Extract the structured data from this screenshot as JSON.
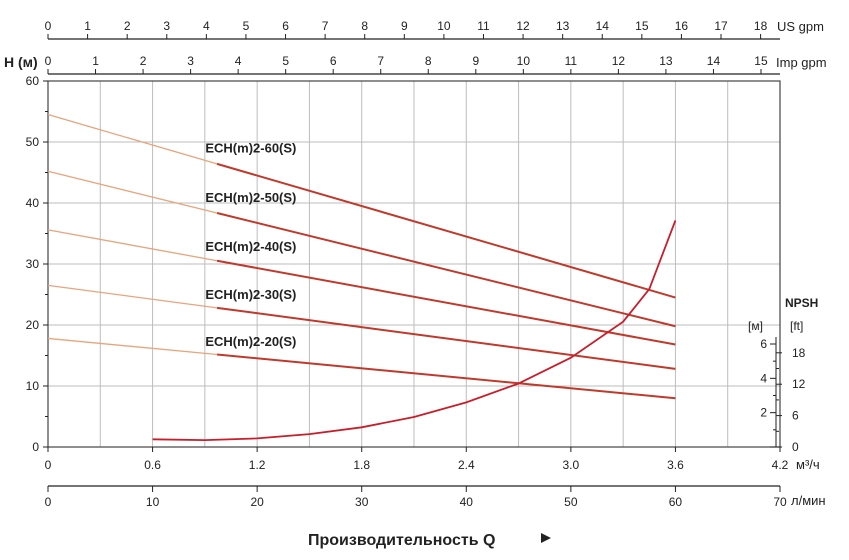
{
  "chart_data": {
    "type": "line",
    "ylabel": "H (м)",
    "ylim": [
      0,
      60
    ],
    "yticks": [
      "0",
      "10",
      "20",
      "30",
      "40",
      "50",
      "60"
    ],
    "x_m3h": {
      "range": [
        0,
        4.2
      ],
      "ticks": [
        "0",
        "0.6",
        "1.2",
        "1.8",
        "2.4",
        "3.0",
        "3.6",
        "4.2"
      ],
      "unit": "м³/ч"
    },
    "x_lmin": {
      "range": [
        0,
        70
      ],
      "ticks": [
        "0",
        "10",
        "20",
        "30",
        "40",
        "50",
        "60",
        "70"
      ],
      "unit": "л/мин"
    },
    "x_usgpm": {
      "range": [
        0,
        18.49
      ],
      "ticks": [
        "0",
        "1",
        "2",
        "3",
        "4",
        "5",
        "6",
        "7",
        "8",
        "9",
        "10",
        "11",
        "12",
        "13",
        "14",
        "15",
        "16",
        "17",
        "18"
      ],
      "unit": "US gpm"
    },
    "x_impgpm": {
      "range": [
        0,
        15.4
      ],
      "ticks": [
        "0",
        "1",
        "2",
        "3",
        "4",
        "5",
        "6",
        "7",
        "8",
        "9",
        "10",
        "11",
        "12",
        "13",
        "14",
        "15"
      ],
      "unit": "Imp gpm"
    },
    "npsh_axis": {
      "title": "NPSH",
      "unit_m": "[м]",
      "unit_ft": "[ft]",
      "ticks_m": [
        "2",
        "4",
        "6"
      ],
      "ticks_ft": [
        "0",
        "6",
        "12",
        "18"
      ]
    },
    "xlabel": "Производительность Q",
    "series": [
      {
        "name": "ECH(m)2-60(S)",
        "x": [
          0,
          3.6
        ],
        "y": [
          54.5,
          24.5
        ]
      },
      {
        "name": "ECH(m)2-50(S)",
        "x": [
          0,
          3.6
        ],
        "y": [
          45.2,
          19.8
        ]
      },
      {
        "name": "ECH(m)2-40(S)",
        "x": [
          0,
          3.6
        ],
        "y": [
          35.6,
          16.8
        ]
      },
      {
        "name": "ECH(m)2-30(S)",
        "x": [
          0,
          3.6
        ],
        "y": [
          26.5,
          12.8
        ]
      },
      {
        "name": "ECH(m)2-20(S)",
        "x": [
          0,
          3.6
        ],
        "y": [
          17.8,
          8.0
        ]
      }
    ],
    "npsh_curve": {
      "x": [
        0.6,
        0.9,
        1.2,
        1.5,
        1.8,
        2.1,
        2.4,
        2.7,
        3.0,
        3.3,
        3.45,
        3.6
      ],
      "y": [
        0.45,
        0.4,
        0.5,
        0.75,
        1.15,
        1.75,
        2.6,
        3.7,
        5.2,
        7.3,
        9.2,
        13.2
      ]
    },
    "grid": true,
    "colors": {
      "line": "#c0392b",
      "light_line": "#e6a57e",
      "grid": "#bdbdbd",
      "axis": "#222222",
      "npsh": "#c81e2a"
    }
  }
}
